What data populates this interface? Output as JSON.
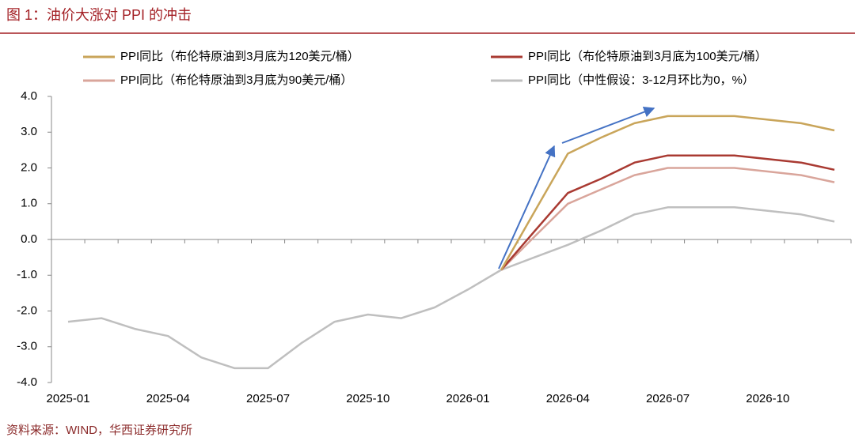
{
  "title": "图 1：油价大涨对 PPI 的冲击",
  "source": "资料来源：WIND，华西证券研究所",
  "chart_data": {
    "type": "line",
    "categories": [
      "2025-01",
      null,
      null,
      "2025-04",
      null,
      null,
      "2025-07",
      null,
      null,
      "2025-10",
      null,
      null,
      "2026-01",
      null,
      null,
      "2026-04",
      null,
      null,
      "2026-07",
      null,
      null,
      "2026-10",
      null,
      null
    ],
    "series": [
      {
        "name": "PPI同比（布伦特原油到3月底为120美元/桶）",
        "color": "#c9a55a",
        "values": [
          null,
          null,
          null,
          null,
          null,
          null,
          null,
          null,
          null,
          null,
          null,
          null,
          null,
          -0.85,
          0.78,
          2.4,
          2.85,
          3.25,
          3.45,
          3.45,
          3.45,
          3.35,
          3.25,
          3.05
        ]
      },
      {
        "name": "PPI同比（布伦特原油到3月底为100美元/桶）",
        "color": "#a93a32",
        "values": [
          null,
          null,
          null,
          null,
          null,
          null,
          null,
          null,
          null,
          null,
          null,
          null,
          null,
          -0.85,
          0.23,
          1.3,
          1.7,
          2.15,
          2.35,
          2.35,
          2.35,
          2.25,
          2.15,
          1.95
        ]
      },
      {
        "name": "PPI同比（布伦特原油到3月底为90美元/桶）",
        "color": "#d9a59b",
        "values": [
          null,
          null,
          null,
          null,
          null,
          null,
          null,
          null,
          null,
          null,
          null,
          null,
          null,
          -0.85,
          0.08,
          1.0,
          1.4,
          1.8,
          2.0,
          2.0,
          2.0,
          1.9,
          1.8,
          1.6
        ]
      },
      {
        "name": "PPI同比（中性假设：3-12月环比为0，%）",
        "color": "#bfbfbf",
        "values": [
          -2.3,
          -2.2,
          -2.5,
          -2.7,
          -3.3,
          -3.6,
          -3.6,
          -2.9,
          -2.3,
          -2.1,
          -2.2,
          -1.9,
          -1.4,
          -0.85,
          -0.5,
          -0.15,
          0.25,
          0.7,
          0.9,
          0.9,
          0.9,
          0.8,
          0.7,
          0.5
        ]
      }
    ],
    "ylim": [
      -4,
      4
    ],
    "yticks": [
      {
        "value": -4,
        "label": "-4.0"
      },
      {
        "value": -3,
        "label": "-3.0"
      },
      {
        "value": -2,
        "label": "-2.0"
      },
      {
        "value": -1,
        "label": "-1.0"
      },
      {
        "value": 0,
        "label": "0.0"
      },
      {
        "value": 1,
        "label": "1.0"
      },
      {
        "value": 2,
        "label": "2.0"
      },
      {
        "value": 3,
        "label": "3.0"
      },
      {
        "value": 4,
        "label": "4.0"
      }
    ],
    "grid": false
  }
}
